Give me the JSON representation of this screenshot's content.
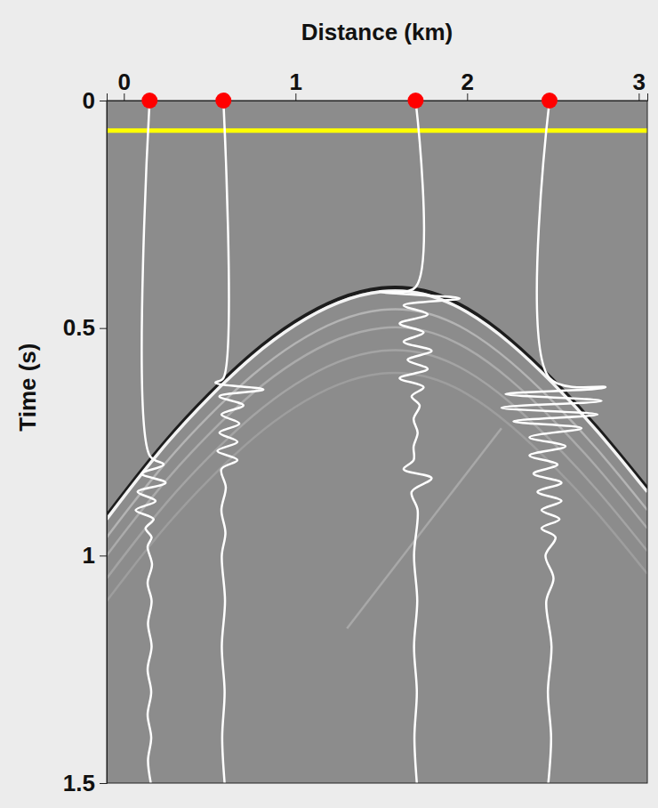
{
  "chart_data": {
    "type": "seismic",
    "x_label": "Distance (km)",
    "y_label": "Time (s)",
    "xlim": [
      -0.1,
      3.05
    ],
    "xticks": [
      0,
      1,
      2,
      3
    ],
    "ylim": [
      0,
      1.5
    ],
    "yticks": [
      0,
      0.5,
      1,
      1.5
    ],
    "color": "#8c8c8c",
    "hline": {
      "y": 0.066,
      "color": "#ffff00"
    },
    "receivers": {
      "x": [
        0.15,
        0.58,
        1.7,
        2.48
      ],
      "color": "#ff0000",
      "marker": "circle"
    },
    "events": [
      {
        "x": [
          -0.1,
          0,
          0.25,
          0.5,
          0.75,
          1.0,
          1.25,
          1.5,
          1.75,
          2.0,
          2.25,
          2.5,
          2.75,
          3.05
        ],
        "t": [
          0.92,
          0.87,
          0.75,
          0.65,
          0.56,
          0.49,
          0.44,
          0.415,
          0.42,
          0.46,
          0.53,
          0.62,
          0.72,
          0.86
        ],
        "color": "#f4f4f4"
      },
      {
        "x": [
          -0.1,
          0,
          0.25,
          0.5,
          0.75,
          1.0,
          1.25,
          1.5,
          1.75,
          2.0,
          2.25,
          2.5,
          2.75,
          3.05
        ],
        "t": [
          0.96,
          0.91,
          0.79,
          0.69,
          0.6,
          0.53,
          0.48,
          0.455,
          0.46,
          0.5,
          0.57,
          0.66,
          0.76,
          0.9
        ],
        "color": "#b4b4b4"
      },
      {
        "x": [
          -0.1,
          0,
          0.25,
          0.5,
          0.75,
          1.0,
          1.25,
          1.5,
          1.75,
          2.0,
          2.25,
          2.5,
          2.75,
          3.05
        ],
        "t": [
          1.0,
          0.95,
          0.83,
          0.73,
          0.64,
          0.57,
          0.52,
          0.495,
          0.5,
          0.54,
          0.61,
          0.7,
          0.8,
          0.94
        ],
        "color": "#ababab"
      },
      {
        "x": [
          -0.1,
          0,
          0.25,
          0.5,
          0.75,
          1.0,
          1.25,
          1.5,
          1.75,
          2.0,
          2.25,
          2.5,
          2.75,
          3.05
        ],
        "t": [
          1.05,
          1.0,
          0.88,
          0.78,
          0.69,
          0.62,
          0.57,
          0.545,
          0.55,
          0.59,
          0.66,
          0.75,
          0.85,
          0.99
        ],
        "color": "#a4a4a4"
      },
      {
        "x": [
          -0.1,
          0,
          0.25,
          0.5,
          0.75,
          1.0,
          1.25,
          1.5,
          1.75,
          2.0,
          2.25,
          2.5,
          2.75,
          3.05
        ],
        "t": [
          1.1,
          1.05,
          0.93,
          0.83,
          0.74,
          0.67,
          0.62,
          0.595,
          0.6,
          0.64,
          0.71,
          0.8,
          0.9,
          1.04
        ],
        "color": "#9e9e9e"
      },
      {
        "x": [
          1.3,
          2.2
        ],
        "t": [
          1.16,
          0.72
        ],
        "color": "#a8a8a8"
      }
    ],
    "traces": [
      {
        "x": 0.15,
        "color": "#ffffff",
        "time": [
          0,
          0.78,
          0.8,
          0.82,
          0.84,
          0.86,
          0.88,
          0.9,
          0.92,
          0.94,
          0.96,
          0.98,
          1.02,
          1.06,
          1.1,
          1.15,
          1.2,
          1.25,
          1.3,
          1.35,
          1.4,
          1.45,
          1.5
        ],
        "amplitude": [
          0,
          0,
          0.35,
          -0.2,
          0.4,
          -0.3,
          0.15,
          -0.35,
          0.1,
          -0.1,
          0.05,
          -0.05,
          0.06,
          -0.05,
          0.05,
          -0.04,
          0.05,
          -0.05,
          0.04,
          -0.05,
          0.04,
          -0.04,
          0.03
        ]
      },
      {
        "x": 0.58,
        "color": "#ffffff",
        "time": [
          0,
          0.61,
          0.62,
          0.635,
          0.65,
          0.67,
          0.69,
          0.71,
          0.73,
          0.75,
          0.77,
          0.79,
          0.81,
          0.85,
          0.9,
          0.95,
          1.0,
          1.1,
          1.2,
          1.3,
          1.4,
          1.5
        ],
        "amplitude": [
          0,
          0,
          -0.2,
          1.0,
          -0.1,
          0.5,
          -0.05,
          0.4,
          -0.1,
          0.35,
          -0.15,
          0.35,
          -0.05,
          0.06,
          -0.05,
          0.05,
          -0.04,
          0.04,
          -0.04,
          0.03,
          -0.03,
          0.03
        ]
      },
      {
        "x": 1.7,
        "color": "#ffffff",
        "time": [
          0,
          0.41,
          0.42,
          0.435,
          0.45,
          0.47,
          0.49,
          0.51,
          0.53,
          0.55,
          0.57,
          0.59,
          0.61,
          0.63,
          0.65,
          0.67,
          0.7,
          0.73,
          0.76,
          0.79,
          0.81,
          0.83,
          0.86,
          0.9,
          1.0,
          1.1,
          1.2,
          1.3,
          1.4,
          1.5
        ],
        "amplitude": [
          0,
          0,
          -0.9,
          1.1,
          -0.3,
          0.3,
          -0.4,
          0.2,
          -0.3,
          0.4,
          -0.2,
          0.3,
          -0.4,
          0.2,
          -0.1,
          0.1,
          -0.05,
          0.05,
          -0.05,
          -0.05,
          -0.3,
          0.4,
          -0.1,
          0.05,
          -0.04,
          0.04,
          -0.04,
          0.03,
          -0.03,
          0.03
        ]
      },
      {
        "x": 2.48,
        "color": "#ffffff",
        "time": [
          0,
          0.61,
          0.63,
          0.645,
          0.66,
          0.675,
          0.69,
          0.705,
          0.72,
          0.74,
          0.76,
          0.78,
          0.8,
          0.82,
          0.84,
          0.86,
          0.88,
          0.9,
          0.92,
          0.94,
          0.96,
          1.0,
          1.05,
          1.1,
          1.2,
          1.3,
          1.4,
          1.5
        ],
        "amplitude": [
          0,
          0,
          1.4,
          -1.1,
          1.3,
          -1.2,
          1.2,
          -0.9,
          0.8,
          -0.5,
          0.4,
          -0.5,
          0.2,
          -0.4,
          0.3,
          -0.3,
          0.3,
          -0.2,
          0.25,
          -0.2,
          0.15,
          -0.1,
          0.1,
          -0.08,
          0.05,
          -0.04,
          0.04,
          -0.03
        ]
      }
    ]
  }
}
